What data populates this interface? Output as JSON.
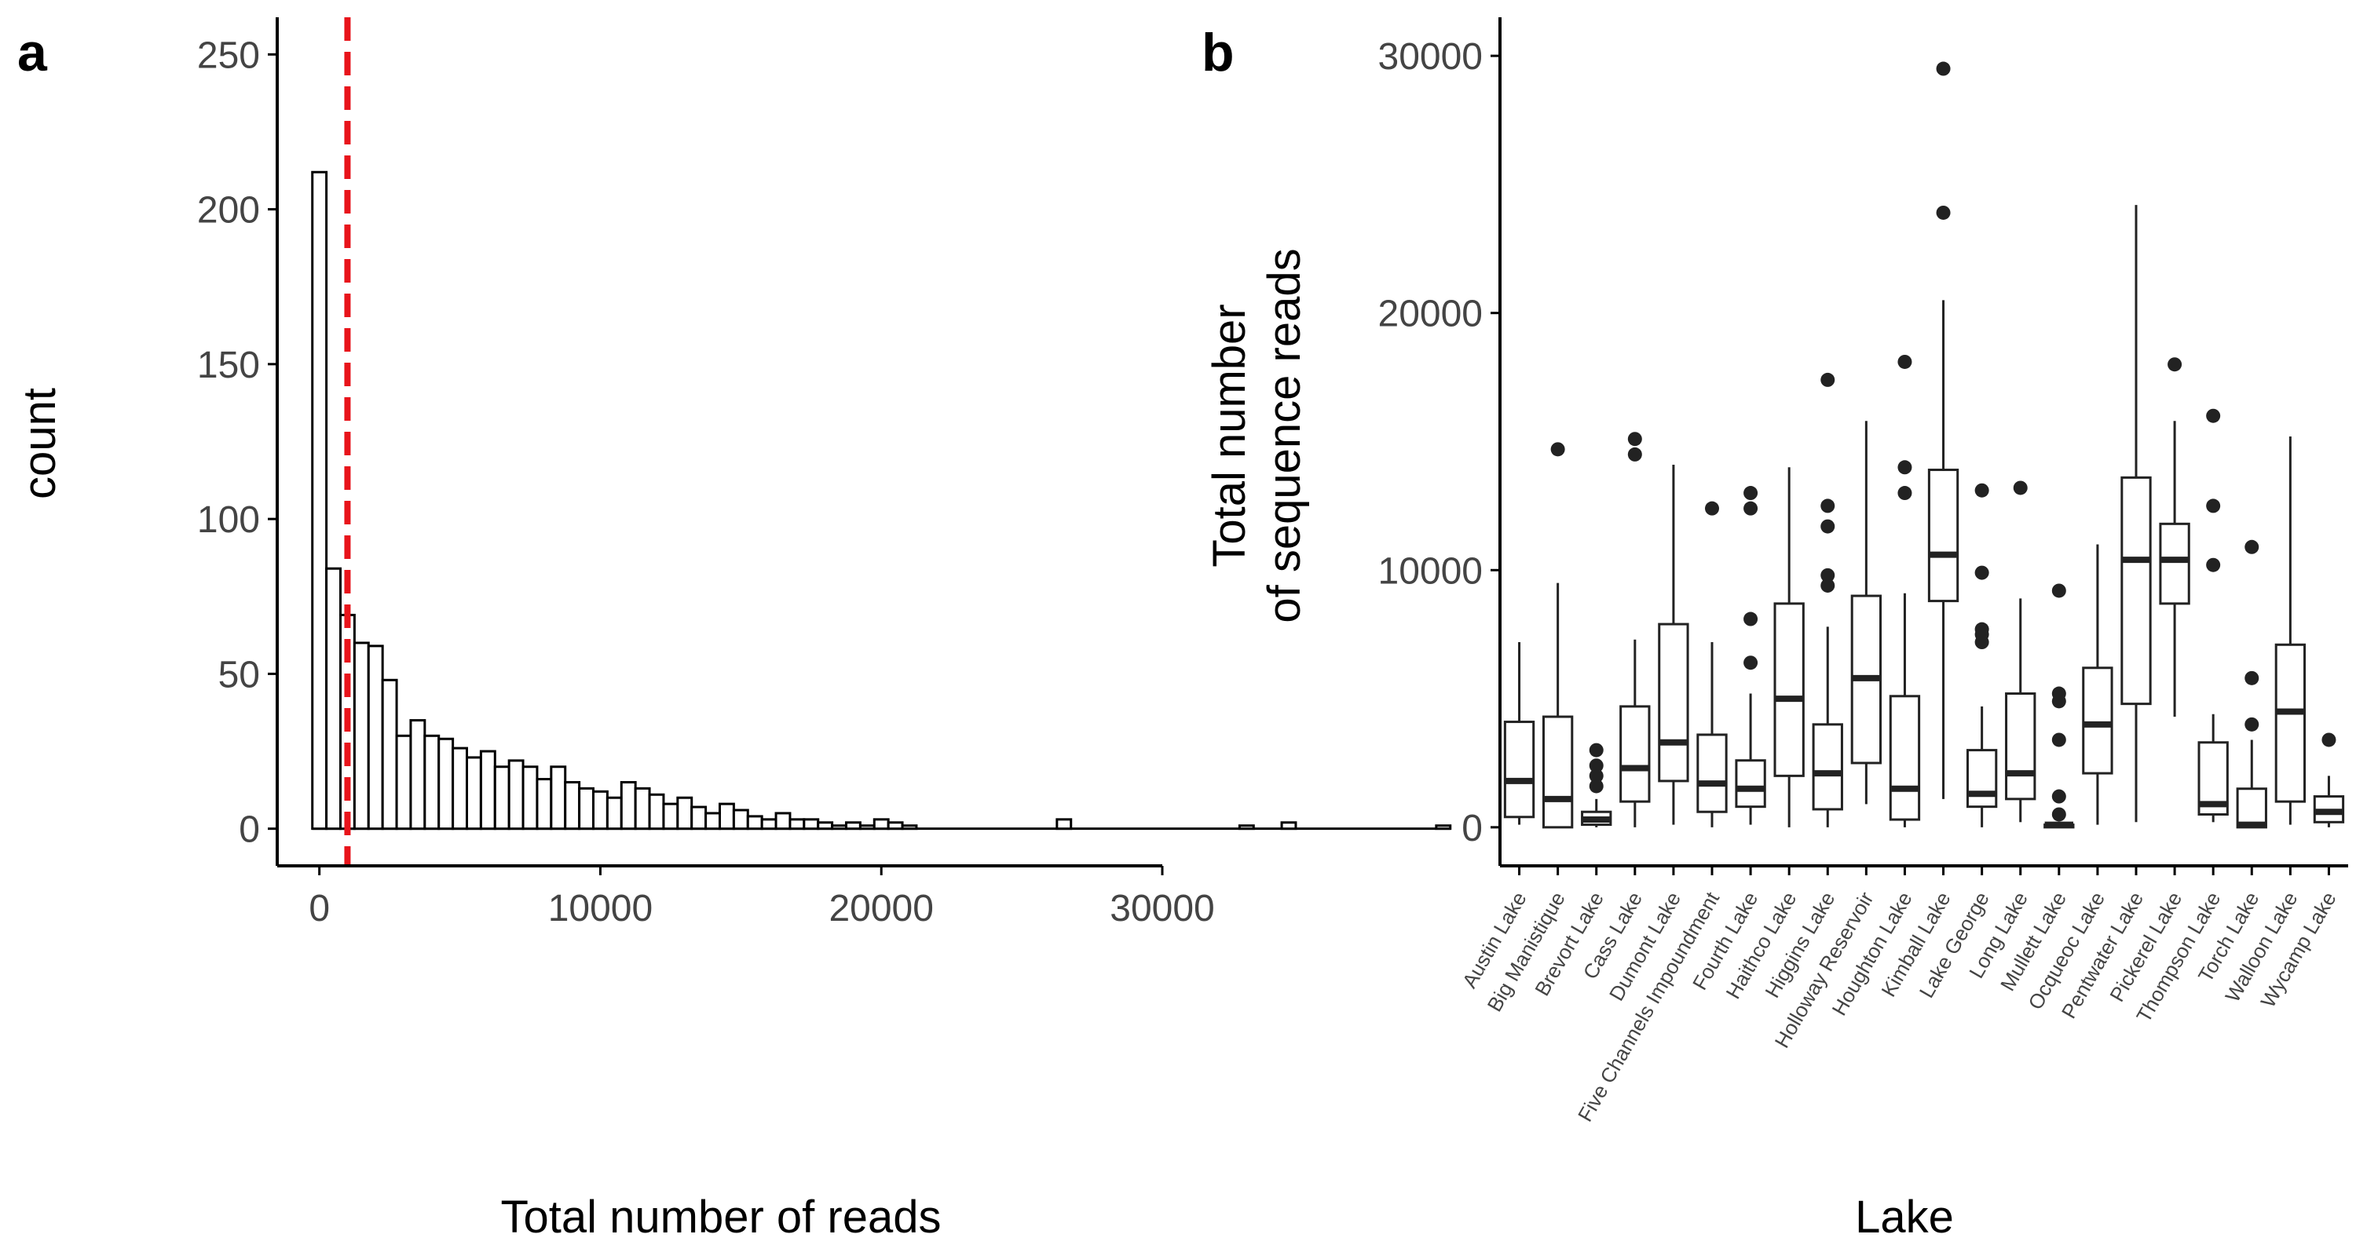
{
  "chart_data": [
    {
      "type": "histogram",
      "panel": "a",
      "xlabel": "Total number of reads",
      "ylabel": "count",
      "xlim": [
        -1500,
        30000
      ],
      "ylim": [
        -12,
        262
      ],
      "xticks": [
        0,
        10000,
        20000,
        30000
      ],
      "yticks": [
        0,
        50,
        100,
        150,
        200,
        250
      ],
      "xtick_labels": [
        "0",
        "10000",
        "20000",
        "30000"
      ],
      "ytick_labels": [
        "0",
        "50",
        "100",
        "150",
        "200",
        "250"
      ],
      "bin_width": 500,
      "bin_start": -250,
      "counts": [
        212,
        84,
        69,
        60,
        59,
        48,
        30,
        35,
        30,
        29,
        26,
        23,
        25,
        20,
        22,
        20,
        16,
        20,
        15,
        13,
        12,
        10,
        15,
        13,
        11,
        8,
        10,
        7,
        5,
        8,
        6,
        4,
        3,
        5,
        3,
        3,
        2,
        1,
        2,
        1,
        3,
        2,
        1,
        0,
        0,
        0,
        0,
        0,
        0,
        0,
        0,
        0,
        0,
        3,
        0,
        0,
        0,
        0,
        0,
        0,
        0,
        0,
        0,
        0,
        0,
        0,
        1,
        0,
        0,
        2,
        0,
        0,
        0,
        0,
        0,
        0,
        0,
        0,
        0,
        0,
        1
      ],
      "threshold_line": {
        "x": 1000,
        "color": "#e8141b",
        "style": "dashed"
      },
      "grid": false
    },
    {
      "type": "boxplot",
      "panel": "b",
      "xlabel": "Lake",
      "ylabel_lines": [
        "Total number",
        "of sequence reads"
      ],
      "ylim": [
        -1500,
        31500
      ],
      "yticks": [
        0,
        10000,
        20000,
        30000
      ],
      "ytick_labels": [
        "0",
        "10000",
        "20000",
        "30000"
      ],
      "grid": false,
      "categories": [
        "Austin Lake",
        "Big Manistique",
        "Brevort Lake",
        "Cass Lake",
        "Dumont Lake",
        "Five Channels Impoundment",
        "Fourth Lake",
        "Haithco Lake",
        "Higgins Lake",
        "Holloway Reservoir",
        "Houghton Lake",
        "Kimball Lake",
        "Lake George",
        "Long Lake",
        "Mullett Lake",
        "Ocqueoc Lake",
        "Pentwater Lake",
        "Pickerel Lake",
        "Thompson Lake",
        "Torch Lake",
        "Walloon Lake",
        "Wycamp Lake"
      ],
      "boxes": [
        {
          "min": 100,
          "q1": 400,
          "median": 1800,
          "q3": 4100,
          "max": 7200,
          "outliers": []
        },
        {
          "min": 0,
          "q1": 0,
          "median": 1100,
          "q3": 4300,
          "max": 9500,
          "outliers": [
            14700
          ]
        },
        {
          "min": 0,
          "q1": 100,
          "median": 300,
          "q3": 600,
          "max": 1100,
          "outliers": [
            1600,
            2000,
            2400,
            3000
          ]
        },
        {
          "min": 0,
          "q1": 1000,
          "median": 2300,
          "q3": 4700,
          "max": 7300,
          "outliers": [
            14500,
            15100
          ]
        },
        {
          "min": 100,
          "q1": 1800,
          "median": 3300,
          "q3": 7900,
          "max": 14100,
          "outliers": []
        },
        {
          "min": 0,
          "q1": 600,
          "median": 1700,
          "q3": 3600,
          "max": 7200,
          "outliers": [
            12400
          ]
        },
        {
          "min": 100,
          "q1": 800,
          "median": 1500,
          "q3": 2600,
          "max": 5200,
          "outliers": [
            6400,
            8100,
            12400,
            13000
          ]
        },
        {
          "min": 0,
          "q1": 2000,
          "median": 5000,
          "q3": 8700,
          "max": 14000,
          "outliers": []
        },
        {
          "min": 0,
          "q1": 700,
          "median": 2100,
          "q3": 4000,
          "max": 7800,
          "outliers": [
            9400,
            9800,
            11700,
            12500,
            17400
          ]
        },
        {
          "min": 900,
          "q1": 2500,
          "median": 5800,
          "q3": 9000,
          "max": 15800,
          "outliers": []
        },
        {
          "min": 0,
          "q1": 300,
          "median": 1500,
          "q3": 5100,
          "max": 9100,
          "outliers": [
            13000,
            14000,
            18100
          ]
        },
        {
          "min": 1100,
          "q1": 8800,
          "median": 10600,
          "q3": 13900,
          "max": 20500,
          "outliers": [
            23900,
            29500
          ]
        },
        {
          "min": 0,
          "q1": 800,
          "median": 1300,
          "q3": 3000,
          "max": 4700,
          "outliers": [
            7200,
            7500,
            7700,
            9900,
            13100
          ]
        },
        {
          "min": 200,
          "q1": 1100,
          "median": 2100,
          "q3": 5200,
          "max": 8900,
          "outliers": [
            13200
          ]
        },
        {
          "min": 0,
          "q1": 0,
          "median": 100,
          "q3": 100,
          "max": 200,
          "outliers": [
            500,
            1200,
            3400,
            4900,
            5200,
            9200
          ]
        },
        {
          "min": 100,
          "q1": 2100,
          "median": 4000,
          "q3": 6200,
          "max": 11000,
          "outliers": []
        },
        {
          "min": 200,
          "q1": 4800,
          "median": 10400,
          "q3": 13600,
          "max": 24200,
          "outliers": []
        },
        {
          "min": 4300,
          "q1": 8700,
          "median": 10400,
          "q3": 11800,
          "max": 15800,
          "outliers": [
            18000
          ]
        },
        {
          "min": 200,
          "q1": 500,
          "median": 900,
          "q3": 3300,
          "max": 4400,
          "outliers": [
            10200,
            12500,
            16000
          ]
        },
        {
          "min": 0,
          "q1": 0,
          "median": 100,
          "q3": 1500,
          "max": 3400,
          "outliers": [
            4000,
            5800,
            10900
          ]
        },
        {
          "min": 100,
          "q1": 1000,
          "median": 4500,
          "q3": 7100,
          "max": 15200,
          "outliers": []
        },
        {
          "min": 0,
          "q1": 200,
          "median": 600,
          "q3": 1200,
          "max": 2000,
          "outliers": [
            3400
          ]
        }
      ]
    }
  ]
}
